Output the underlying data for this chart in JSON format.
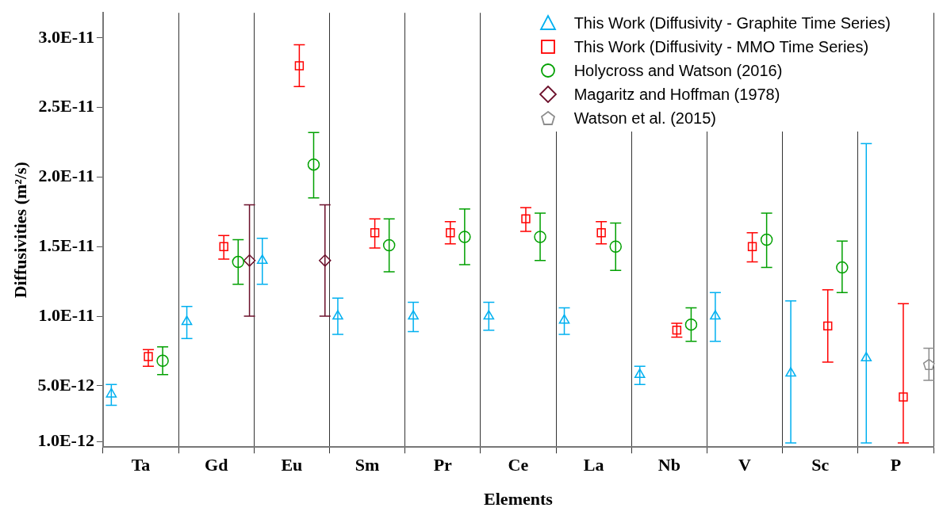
{
  "chart_data": {
    "type": "scatter",
    "xlabel": "Elements",
    "ylabel": "Diffusivities (m²/s)",
    "categories": [
      "Ta",
      "Gd",
      "Eu",
      "Sm",
      "Pr",
      "Ce",
      "La",
      "Nb",
      "V",
      "Sc",
      "P"
    ],
    "ylim": [
      6e-13,
      3.18e-11
    ],
    "yticks": [
      {
        "value": 1e-12,
        "label": "1.0E-12"
      },
      {
        "value": 5e-12,
        "label": "5.0E-12"
      },
      {
        "value": 1e-11,
        "label": "1.0E-11"
      },
      {
        "value": 1.5e-11,
        "label": "1.5E-11"
      },
      {
        "value": 2e-11,
        "label": "2.0E-11"
      },
      {
        "value": 2.5e-11,
        "label": "2.5E-11"
      },
      {
        "value": 3e-11,
        "label": "3.0E-11"
      }
    ],
    "grid": "x",
    "legend": "top right",
    "series": [
      {
        "name": "This Work (Diffusivity - Graphite Time Series)",
        "color": "#00b0f0",
        "marker": "triangle",
        "values": [
          4.4e-12,
          9.6e-12,
          1.4e-11,
          1e-11,
          1e-11,
          1e-11,
          9.7e-12,
          5.8e-12,
          1e-11,
          5.9e-12,
          7e-12
        ],
        "errors": [
          [
            3.6e-12,
            5.1e-12
          ],
          [
            8.4e-12,
            1.07e-11
          ],
          [
            1.23e-11,
            1.56e-11
          ],
          [
            8.7e-12,
            1.13e-11
          ],
          [
            8.9e-12,
            1.1e-11
          ],
          [
            9e-12,
            1.1e-11
          ],
          [
            8.7e-12,
            1.06e-11
          ],
          [
            5.1e-12,
            6.4e-12
          ],
          [
            8.2e-12,
            1.17e-11
          ],
          [
            9e-13,
            1.11e-11
          ],
          [
            9e-13,
            2.24e-11
          ]
        ]
      },
      {
        "name": "This Work (Diffusivity - MMO Time Series)",
        "color": "#ff0000",
        "marker": "square",
        "values": [
          7.1e-12,
          1.5e-11,
          2.8e-11,
          1.6e-11,
          1.6e-11,
          1.7e-11,
          1.6e-11,
          9e-12,
          1.5e-11,
          9.3e-12,
          4.2e-12
        ],
        "errors": [
          [
            6.4e-12,
            7.6e-12
          ],
          [
            1.41e-11,
            1.58e-11
          ],
          [
            2.65e-11,
            2.95e-11
          ],
          [
            1.49e-11,
            1.7e-11
          ],
          [
            1.52e-11,
            1.68e-11
          ],
          [
            1.61e-11,
            1.78e-11
          ],
          [
            1.52e-11,
            1.68e-11
          ],
          [
            8.5e-12,
            9.5e-12
          ],
          [
            1.39e-11,
            1.6e-11
          ],
          [
            6.7e-12,
            1.19e-11
          ],
          [
            9e-13,
            1.09e-11
          ]
        ]
      },
      {
        "name": "Holycross and Watson (2016)",
        "color": "#00a000",
        "marker": "circle",
        "values": [
          6.8e-12,
          1.39e-11,
          2.09e-11,
          1.51e-11,
          1.57e-11,
          1.57e-11,
          1.5e-11,
          9.4e-12,
          1.55e-11,
          1.35e-11,
          null
        ],
        "errors": [
          [
            5.8e-12,
            7.8e-12
          ],
          [
            1.23e-11,
            1.55e-11
          ],
          [
            1.85e-11,
            2.32e-11
          ],
          [
            1.32e-11,
            1.7e-11
          ],
          [
            1.37e-11,
            1.77e-11
          ],
          [
            1.4e-11,
            1.74e-11
          ],
          [
            1.33e-11,
            1.67e-11
          ],
          [
            8.2e-12,
            1.06e-11
          ],
          [
            1.35e-11,
            1.74e-11
          ],
          [
            1.17e-11,
            1.54e-11
          ],
          null
        ]
      },
      {
        "name": "Magaritz and Hoffman (1978)",
        "color": "#6b0f2a",
        "marker": "diamond",
        "values": [
          null,
          1.4e-11,
          1.4e-11,
          null,
          null,
          null,
          null,
          null,
          null,
          null,
          null
        ],
        "errors": [
          null,
          [
            1e-11,
            1.8e-11
          ],
          [
            1e-11,
            1.8e-11
          ],
          null,
          null,
          null,
          null,
          null,
          null,
          null,
          null
        ]
      },
      {
        "name": "Watson et al. (2015)",
        "color": "#8c8c8c",
        "values": [
          null,
          null,
          null,
          null,
          null,
          null,
          null,
          null,
          null,
          null,
          6.5e-12
        ],
        "errors": [
          null,
          null,
          null,
          null,
          null,
          null,
          null,
          null,
          null,
          null,
          [
            5.4e-12,
            7.7e-12
          ]
        ]
      }
    ]
  }
}
